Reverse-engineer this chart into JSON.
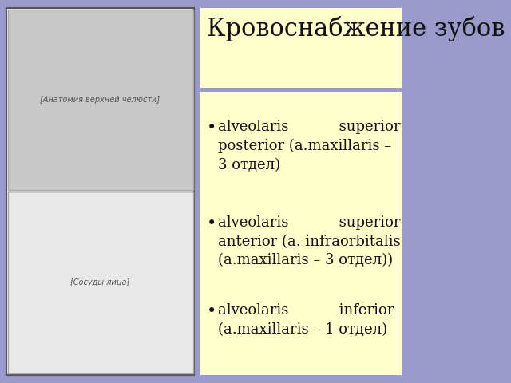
{
  "title": "Кровоснабжение зубов",
  "background_color": "#9999cc",
  "title_box_color": "#ffffcc",
  "content_box_color": "#ffffcc",
  "bullet_points": [
    "alveolaris           superior\nposterior (a.maxillaris –\n3 отдел)",
    "alveolaris           superior\nanterior (a. infraorbitalis\n(a.maxillaris – 3 отдел))",
    "alveolaris           inferior\n(a.maxillaris – 1 отдел)"
  ],
  "title_fontsize": 22,
  "bullet_fontsize": 13,
  "left_panel_bg": "#ffffff",
  "image_placeholder_color": "#dddddd"
}
